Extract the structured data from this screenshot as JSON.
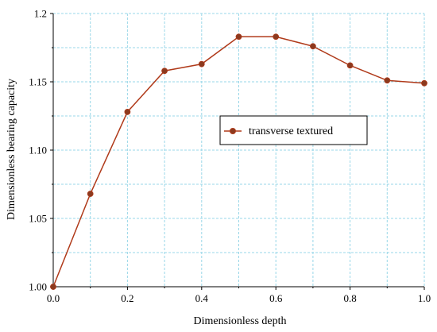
{
  "chart_data": {
    "type": "line",
    "xlabel": "Dimensionless depth",
    "ylabel": "Dimensionless bearing capacity",
    "xlim": [
      0.0,
      1.0
    ],
    "ylim": [
      1.0,
      1.2
    ],
    "x_ticks": [
      "0.0",
      "0.2",
      "0.4",
      "0.6",
      "0.8",
      "1.0"
    ],
    "y_ticks": [
      "1.00",
      "1.05",
      "1.10",
      "1.15",
      "1.2"
    ],
    "grid": true,
    "legend_position": "center-right",
    "series": [
      {
        "name": "transverse textured",
        "color": "#b03a1a",
        "marker_color": "#8b3a1f",
        "x": [
          0.0,
          0.1,
          0.2,
          0.3,
          0.4,
          0.5,
          0.6,
          0.7,
          0.8,
          0.9,
          1.0
        ],
        "y": [
          1.0,
          1.068,
          1.128,
          1.158,
          1.163,
          1.183,
          1.183,
          1.176,
          1.162,
          1.151,
          1.149
        ]
      }
    ]
  }
}
